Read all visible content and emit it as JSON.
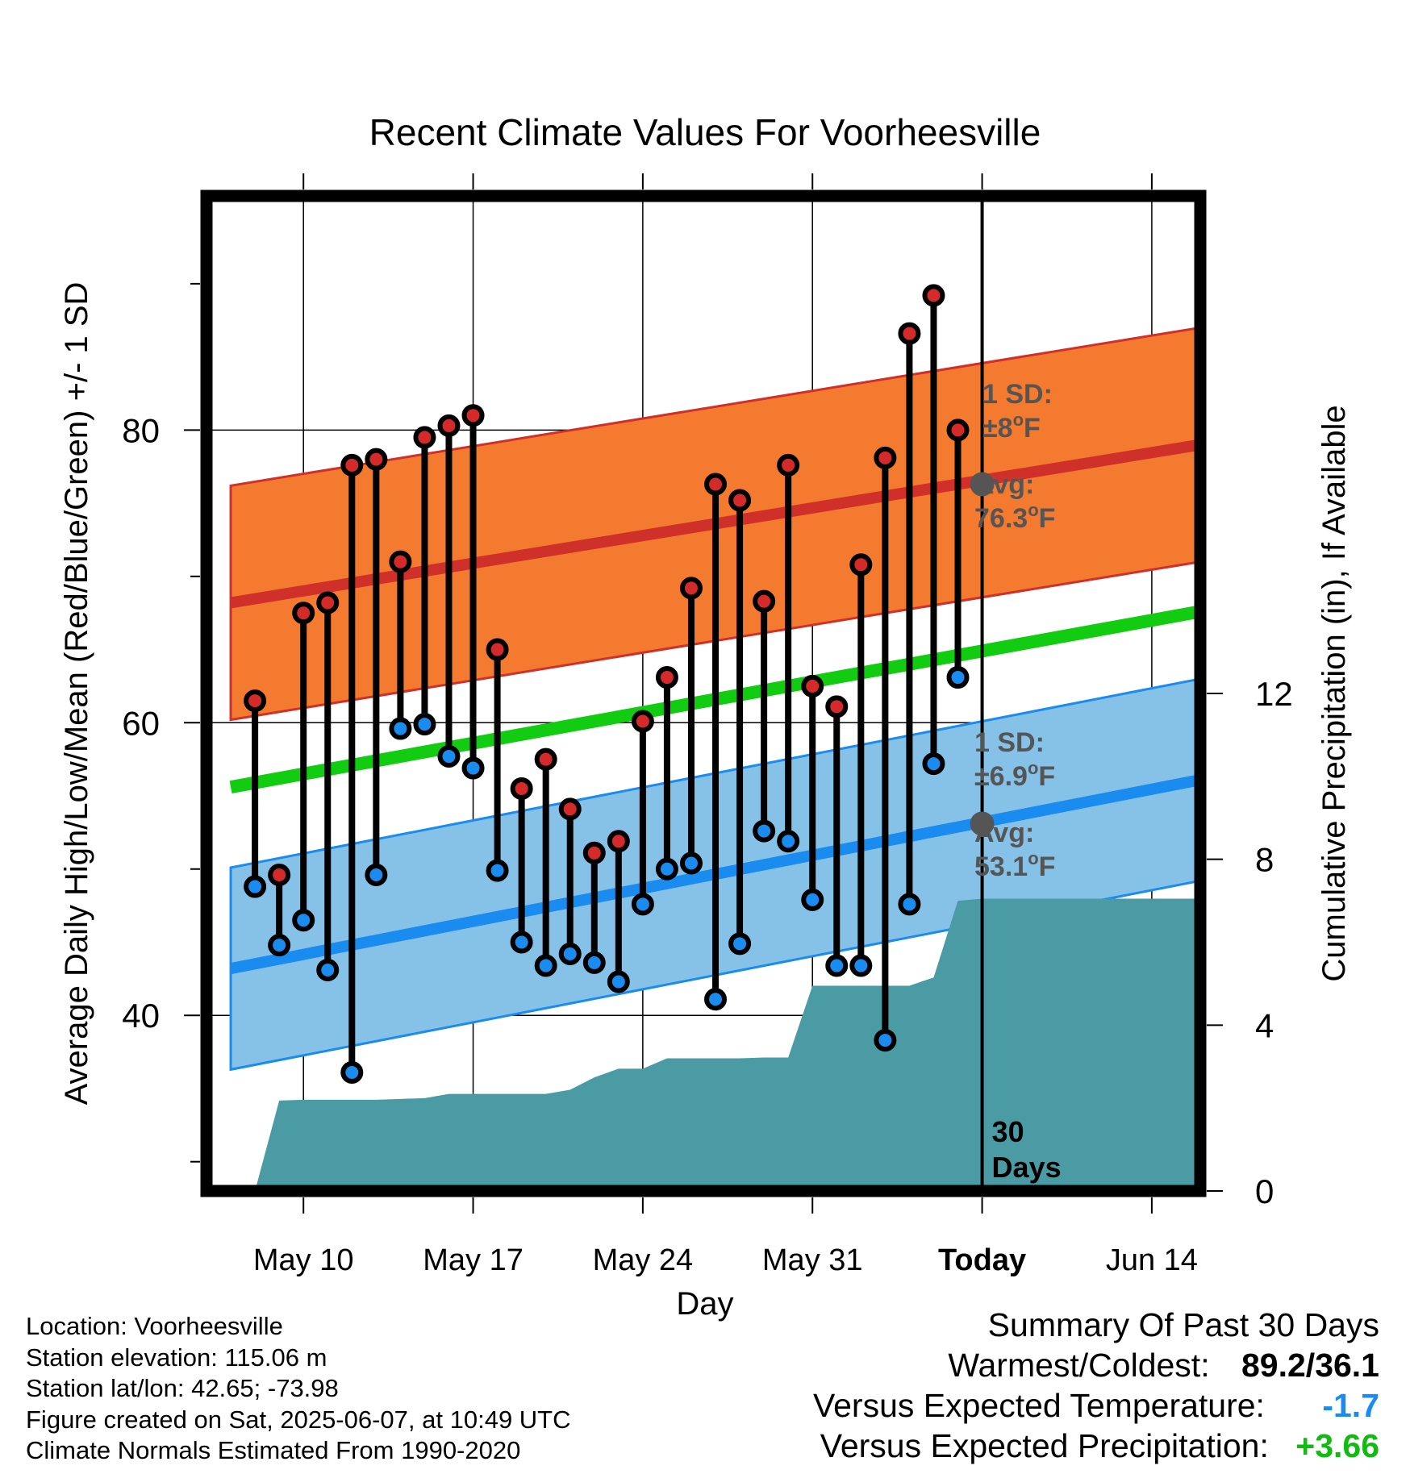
{
  "chart_data": {
    "type": "line",
    "title": "Recent Climate Values For Voorheesville",
    "xlabel": "Day",
    "ylabel": "Average Daily High/Low/Mean (Red/Blue/Green) +/- 1 SD",
    "y2label": "Cumulative Precipitation (in), If Available",
    "xlim": [
      "2025-05-06",
      "2025-06-16"
    ],
    "ylim": [
      28,
      96
    ],
    "y2lim": [
      0,
      24
    ],
    "x_ticks": [
      {
        "date": "2025-05-10",
        "label": "May 10"
      },
      {
        "date": "2025-05-17",
        "label": "May 17"
      },
      {
        "date": "2025-05-24",
        "label": "May 24"
      },
      {
        "date": "2025-05-31",
        "label": "May 31"
      },
      {
        "date": "2025-06-07",
        "label": "Today"
      },
      {
        "date": "2025-06-14",
        "label": "Jun 14"
      }
    ],
    "y_ticks": [
      "40",
      "60",
      "80"
    ],
    "y_minor_ticks": [
      30,
      50,
      70,
      90
    ],
    "y2_ticks": [
      "0",
      "4",
      "8",
      "12"
    ],
    "grid": true,
    "today": "2025-06-07",
    "today_label": [
      "30",
      "Days"
    ],
    "dates": [
      "2025-05-08",
      "2025-05-09",
      "2025-05-10",
      "2025-05-11",
      "2025-05-12",
      "2025-05-13",
      "2025-05-14",
      "2025-05-15",
      "2025-05-16",
      "2025-05-17",
      "2025-05-18",
      "2025-05-19",
      "2025-05-20",
      "2025-05-21",
      "2025-05-22",
      "2025-05-23",
      "2025-05-24",
      "2025-05-25",
      "2025-05-26",
      "2025-05-27",
      "2025-05-28",
      "2025-05-29",
      "2025-05-30",
      "2025-05-31",
      "2025-06-01",
      "2025-06-02",
      "2025-06-03",
      "2025-06-04",
      "2025-06-05",
      "2025-06-06"
    ],
    "highs": [
      61.5,
      49.6,
      67.5,
      68.2,
      77.6,
      78.0,
      71.0,
      79.5,
      80.3,
      81.0,
      65.0,
      55.5,
      57.5,
      54.1,
      51.1,
      51.9,
      60.1,
      63.1,
      69.2,
      76.3,
      75.2,
      68.3,
      77.6,
      62.5,
      61.1,
      70.8,
      78.1,
      86.6,
      89.2,
      80.0
    ],
    "lows": [
      48.8,
      44.8,
      46.5,
      43.1,
      36.1,
      49.6,
      59.6,
      59.9,
      57.7,
      56.9,
      49.9,
      45.0,
      43.4,
      44.2,
      43.6,
      42.3,
      47.6,
      50.0,
      50.4,
      41.1,
      44.9,
      52.6,
      51.9,
      47.9,
      43.4,
      43.4,
      38.3,
      47.6,
      57.2,
      63.1
    ],
    "bands": {
      "high": {
        "mean_start": 68.2,
        "mean_end": 79.0,
        "sd": 8,
        "fill": "#f47a30",
        "line": "#d0302a"
      },
      "low": {
        "mean_start": 43.2,
        "mean_end": 56.1,
        "sd": 6.9,
        "fill": "#86c2e8",
        "line": "#1a8cf0"
      },
      "mean": {
        "start": 55.6,
        "end": 67.6,
        "line": "#11cc11"
      }
    },
    "band_range": [
      "2025-05-07",
      "2025-06-16"
    ],
    "annotations": {
      "high_sd": [
        "1 SD:",
        "±8",
        "o",
        "F"
      ],
      "high_avg": [
        "Avg:",
        "76.3",
        "o",
        "F"
      ],
      "low_sd": [
        "1 SD:",
        "±6.9",
        "o",
        "F"
      ],
      "low_avg": [
        "Avg:",
        "53.1",
        "o",
        "F"
      ]
    },
    "today_avgs": {
      "high": 76.3,
      "low": 53.1
    },
    "precip_cumulative": {
      "dates": [
        "2025-05-08",
        "2025-05-09",
        "2025-05-10",
        "2025-05-11",
        "2025-05-12",
        "2025-05-13",
        "2025-05-14",
        "2025-05-15",
        "2025-05-16",
        "2025-05-17",
        "2025-05-18",
        "2025-05-19",
        "2025-05-20",
        "2025-05-21",
        "2025-05-22",
        "2025-05-23",
        "2025-05-24",
        "2025-05-25",
        "2025-05-26",
        "2025-05-27",
        "2025-05-28",
        "2025-05-29",
        "2025-05-30",
        "2025-05-31",
        "2025-06-01",
        "2025-06-02",
        "2025-06-03",
        "2025-06-04",
        "2025-06-05",
        "2025-06-06",
        "2025-06-07",
        "2025-06-16"
      ],
      "values": [
        0.0,
        2.18,
        2.2,
        2.2,
        2.2,
        2.2,
        2.22,
        2.24,
        2.34,
        2.34,
        2.34,
        2.34,
        2.34,
        2.44,
        2.74,
        2.95,
        2.95,
        3.2,
        3.2,
        3.2,
        3.2,
        3.22,
        3.22,
        4.95,
        4.95,
        4.95,
        4.95,
        4.95,
        5.15,
        7.0,
        7.05,
        7.05
      ],
      "fill": "#4a9ba4"
    }
  },
  "colors": {
    "high_point": "#d42a2a",
    "low_point": "#1a8cf0",
    "avg_marker": "#555555",
    "annotation": "#555555",
    "wet": "#11bb11",
    "cold": "#1a8cf0"
  },
  "meta": {
    "location": "Location: Voorheesville",
    "elevation": "Station elevation: 115.06 m",
    "latlon": "Station lat/lon: 42.65; -73.98",
    "created": "Figure created on Sat, 2025-06-07, at 10:49 UTC",
    "normals": "Climate Normals Estimated From 1990-2020"
  },
  "summary": {
    "title": "Summary Of Past 30 Days",
    "warm_cold_label": "Warmest/Coldest:",
    "warm_cold_value": "89.2/36.1",
    "temp_label": "Versus Expected Temperature:",
    "temp_value": "-1.7",
    "precip_label": "Versus Expected Precipitation:",
    "precip_value": "+3.66"
  }
}
